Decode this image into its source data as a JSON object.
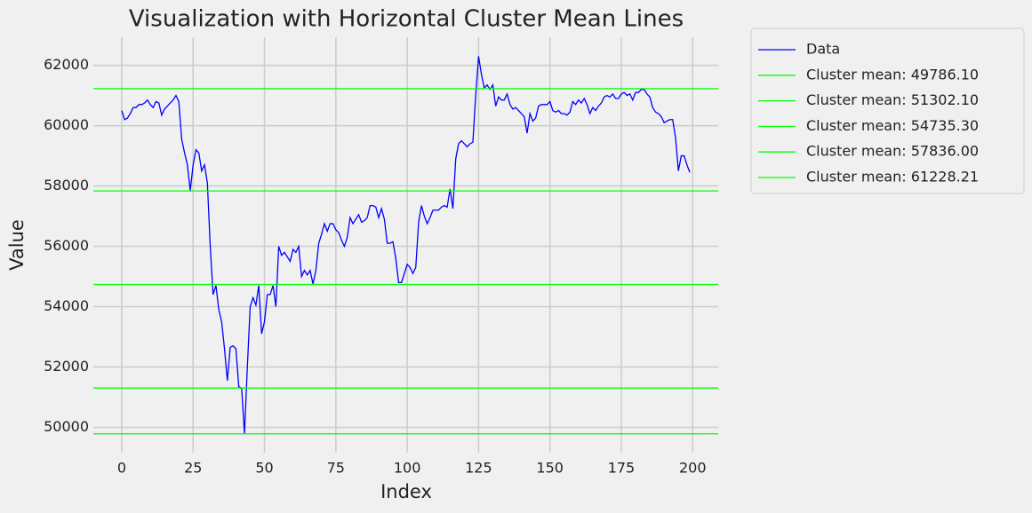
{
  "chart_data": {
    "type": "line",
    "title": "Visualization with Horizontal Cluster Mean Lines",
    "xlabel": "Index",
    "ylabel": "Value",
    "x": [
      0,
      1,
      2,
      3,
      4,
      5,
      6,
      7,
      8,
      9,
      10,
      11,
      12,
      13,
      14,
      15,
      16,
      17,
      18,
      19,
      20,
      21,
      22,
      23,
      24,
      25,
      26,
      27,
      28,
      29,
      30,
      31,
      32,
      33,
      34,
      35,
      36,
      37,
      38,
      39,
      40,
      41,
      42,
      43,
      44,
      45,
      46,
      47,
      48,
      49,
      50,
      51,
      52,
      53,
      54,
      55,
      56,
      57,
      58,
      59,
      60,
      61,
      62,
      63,
      64,
      65,
      66,
      67,
      68,
      69,
      70,
      71,
      72,
      73,
      74,
      75,
      76,
      77,
      78,
      79,
      80,
      81,
      82,
      83,
      84,
      85,
      86,
      87,
      88,
      89,
      90,
      91,
      92,
      93,
      94,
      95,
      96,
      97,
      98,
      99,
      100,
      101,
      102,
      103,
      104,
      105,
      106,
      107,
      108,
      109,
      110,
      111,
      112,
      113,
      114,
      115,
      116,
      117,
      118,
      119,
      120,
      121,
      122,
      123,
      124,
      125,
      126,
      127,
      128,
      129,
      130,
      131,
      132,
      133,
      134,
      135,
      136,
      137,
      138,
      139,
      140,
      141,
      142,
      143,
      144,
      145,
      146,
      147,
      148,
      149,
      150,
      151,
      152,
      153,
      154,
      155,
      156,
      157,
      158,
      159,
      160,
      161,
      162,
      163,
      164,
      165,
      166,
      167,
      168,
      169,
      170,
      171,
      172,
      173,
      174,
      175,
      176,
      177,
      178,
      179,
      180,
      181,
      182,
      183,
      184,
      185,
      186,
      187,
      188,
      189,
      190,
      191,
      192,
      193,
      194,
      195,
      196,
      197,
      198,
      199
    ],
    "series": [
      {
        "name": "Data",
        "color": "#0000ff",
        "values": [
          60500,
          60200,
          60250,
          60400,
          60600,
          60600,
          60700,
          60700,
          60750,
          60850,
          60700,
          60600,
          60800,
          60750,
          60350,
          60550,
          60650,
          60750,
          60850,
          61000,
          60800,
          59550,
          59100,
          58700,
          57850,
          58700,
          59200,
          59100,
          58500,
          58700,
          58100,
          56000,
          54400,
          54700,
          53900,
          53500,
          52600,
          51550,
          52650,
          52700,
          52600,
          51350,
          51300,
          49786,
          52000,
          54000,
          54300,
          54050,
          54700,
          53100,
          53500,
          54400,
          54400,
          54700,
          54000,
          56000,
          55700,
          55800,
          55650,
          55500,
          55900,
          55800,
          56000,
          55000,
          55200,
          55050,
          55200,
          54750,
          55200,
          56100,
          56400,
          56750,
          56500,
          56750,
          56750,
          56550,
          56450,
          56200,
          56000,
          56300,
          56950,
          56750,
          56900,
          57050,
          56800,
          56850,
          56950,
          57350,
          57350,
          57300,
          56950,
          57250,
          56900,
          56100,
          56100,
          56150,
          55600,
          54800,
          54800,
          55100,
          55400,
          55300,
          55100,
          55300,
          56800,
          57350,
          57000,
          56750,
          56950,
          57200,
          57200,
          57200,
          57300,
          57350,
          57300,
          57900,
          57250,
          58900,
          59400,
          59500,
          59400,
          59300,
          59400,
          59450,
          61000,
          62300,
          61700,
          61250,
          61350,
          61200,
          61350,
          60650,
          60950,
          60850,
          60850,
          61050,
          60700,
          60550,
          60600,
          60500,
          60400,
          60300,
          59750,
          60400,
          60150,
          60250,
          60650,
          60700,
          60700,
          60700,
          60800,
          60500,
          60450,
          60500,
          60400,
          60400,
          60350,
          60450,
          60800,
          60700,
          60850,
          60750,
          60900,
          60700,
          60400,
          60600,
          60500,
          60650,
          60750,
          60950,
          61000,
          60950,
          61050,
          60900,
          60900,
          61050,
          61100,
          61000,
          61050,
          60850,
          61100,
          61100,
          61200,
          61200,
          61050,
          60950,
          60600,
          60450,
          60400,
          60300,
          60100,
          60150,
          60200,
          60200,
          59600,
          58500,
          59000,
          59000,
          58700,
          58450
        ]
      }
    ],
    "hlines": [
      {
        "value": 49786.1,
        "label": "Cluster mean: 49786.10",
        "color": "#00ff00"
      },
      {
        "value": 51302.1,
        "label": "Cluster mean: 51302.10",
        "color": "#00ff00"
      },
      {
        "value": 54735.3,
        "label": "Cluster mean: 54735.30",
        "color": "#00ff00"
      },
      {
        "value": 57836.0,
        "label": "Cluster mean: 57836.00",
        "color": "#00ff00"
      },
      {
        "value": 61228.21,
        "label": "Cluster mean: 61228.21",
        "color": "#00ff00"
      }
    ],
    "xlim": [
      -9.95,
      208.95
    ],
    "ylim": [
      49160,
      62930
    ],
    "xticks": [
      0,
      25,
      50,
      75,
      100,
      125,
      150,
      175,
      200
    ],
    "yticks": [
      50000,
      52000,
      54000,
      56000,
      58000,
      60000,
      62000
    ],
    "grid": true
  }
}
